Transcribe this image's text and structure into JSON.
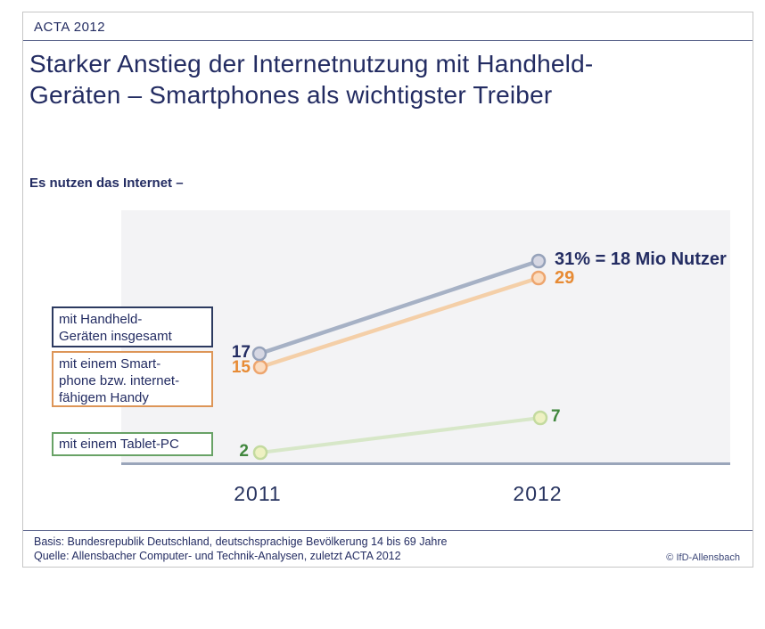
{
  "header": {
    "label": "ACTA 2012"
  },
  "title": {
    "line1": "Starker Anstieg der Internetnutzung mit Handheld-",
    "line2": "Geräten – Smartphones als wichtigster Treiber"
  },
  "subtitle": "Es nutzen das Internet –",
  "chart_data": {
    "type": "line",
    "categories": [
      "2011",
      "2012"
    ],
    "series": [
      {
        "name": "mit Handheld-Geräten insgesamt",
        "values": [
          17,
          31
        ],
        "unit": "%",
        "color": "#a6b1c5",
        "point_labels": {
          "start": "17",
          "end": "31% = 18 Mio Nutzer"
        }
      },
      {
        "name": "mit einem Smartphone bzw. internetfähigem Handy",
        "values": [
          15,
          29
        ],
        "unit": "%",
        "color": "#f4cfa8",
        "point_labels": {
          "start": "15",
          "end": "29"
        }
      },
      {
        "name": "mit einem Tablet-PC",
        "values": [
          2,
          7
        ],
        "unit": "%",
        "color": "#d7e7c8",
        "point_labels": {
          "start": "2",
          "end": "7"
        }
      }
    ],
    "annotation": "31% = 18 Mio Nutzer",
    "ylim": [
      0,
      35
    ],
    "grid": false,
    "legend_position": "left boxes",
    "plot_background": "#f3f3f5",
    "baseline_color": "#9aa5ba"
  },
  "legend": {
    "handheld": {
      "line1": "mit Handheld-",
      "line2": "Geräten insgesamt"
    },
    "smartphone": {
      "line1": "mit einem Smart-",
      "line2": "phone bzw. internet-",
      "line3": "fähigem Handy"
    },
    "tablet": {
      "label": "mit einem Tablet-PC"
    }
  },
  "footer": {
    "basis": "Basis: Bundesrepublik Deutschland, deutschsprachige Bevölkerung 14 bis 69 Jahre",
    "quelle": "Quelle: Allensbacher Computer- und Technik-Analysen, zuletzt ACTA 2012",
    "copyright": "© IfD-Allensbach"
  },
  "colors": {
    "navy_text": "#232c62",
    "orange_text": "#e78b35",
    "green_text": "#41873e",
    "handheld_line": "#a6b1c5",
    "smartphone_line": "#f4cfa8",
    "tablet_line": "#d7e7c8"
  }
}
